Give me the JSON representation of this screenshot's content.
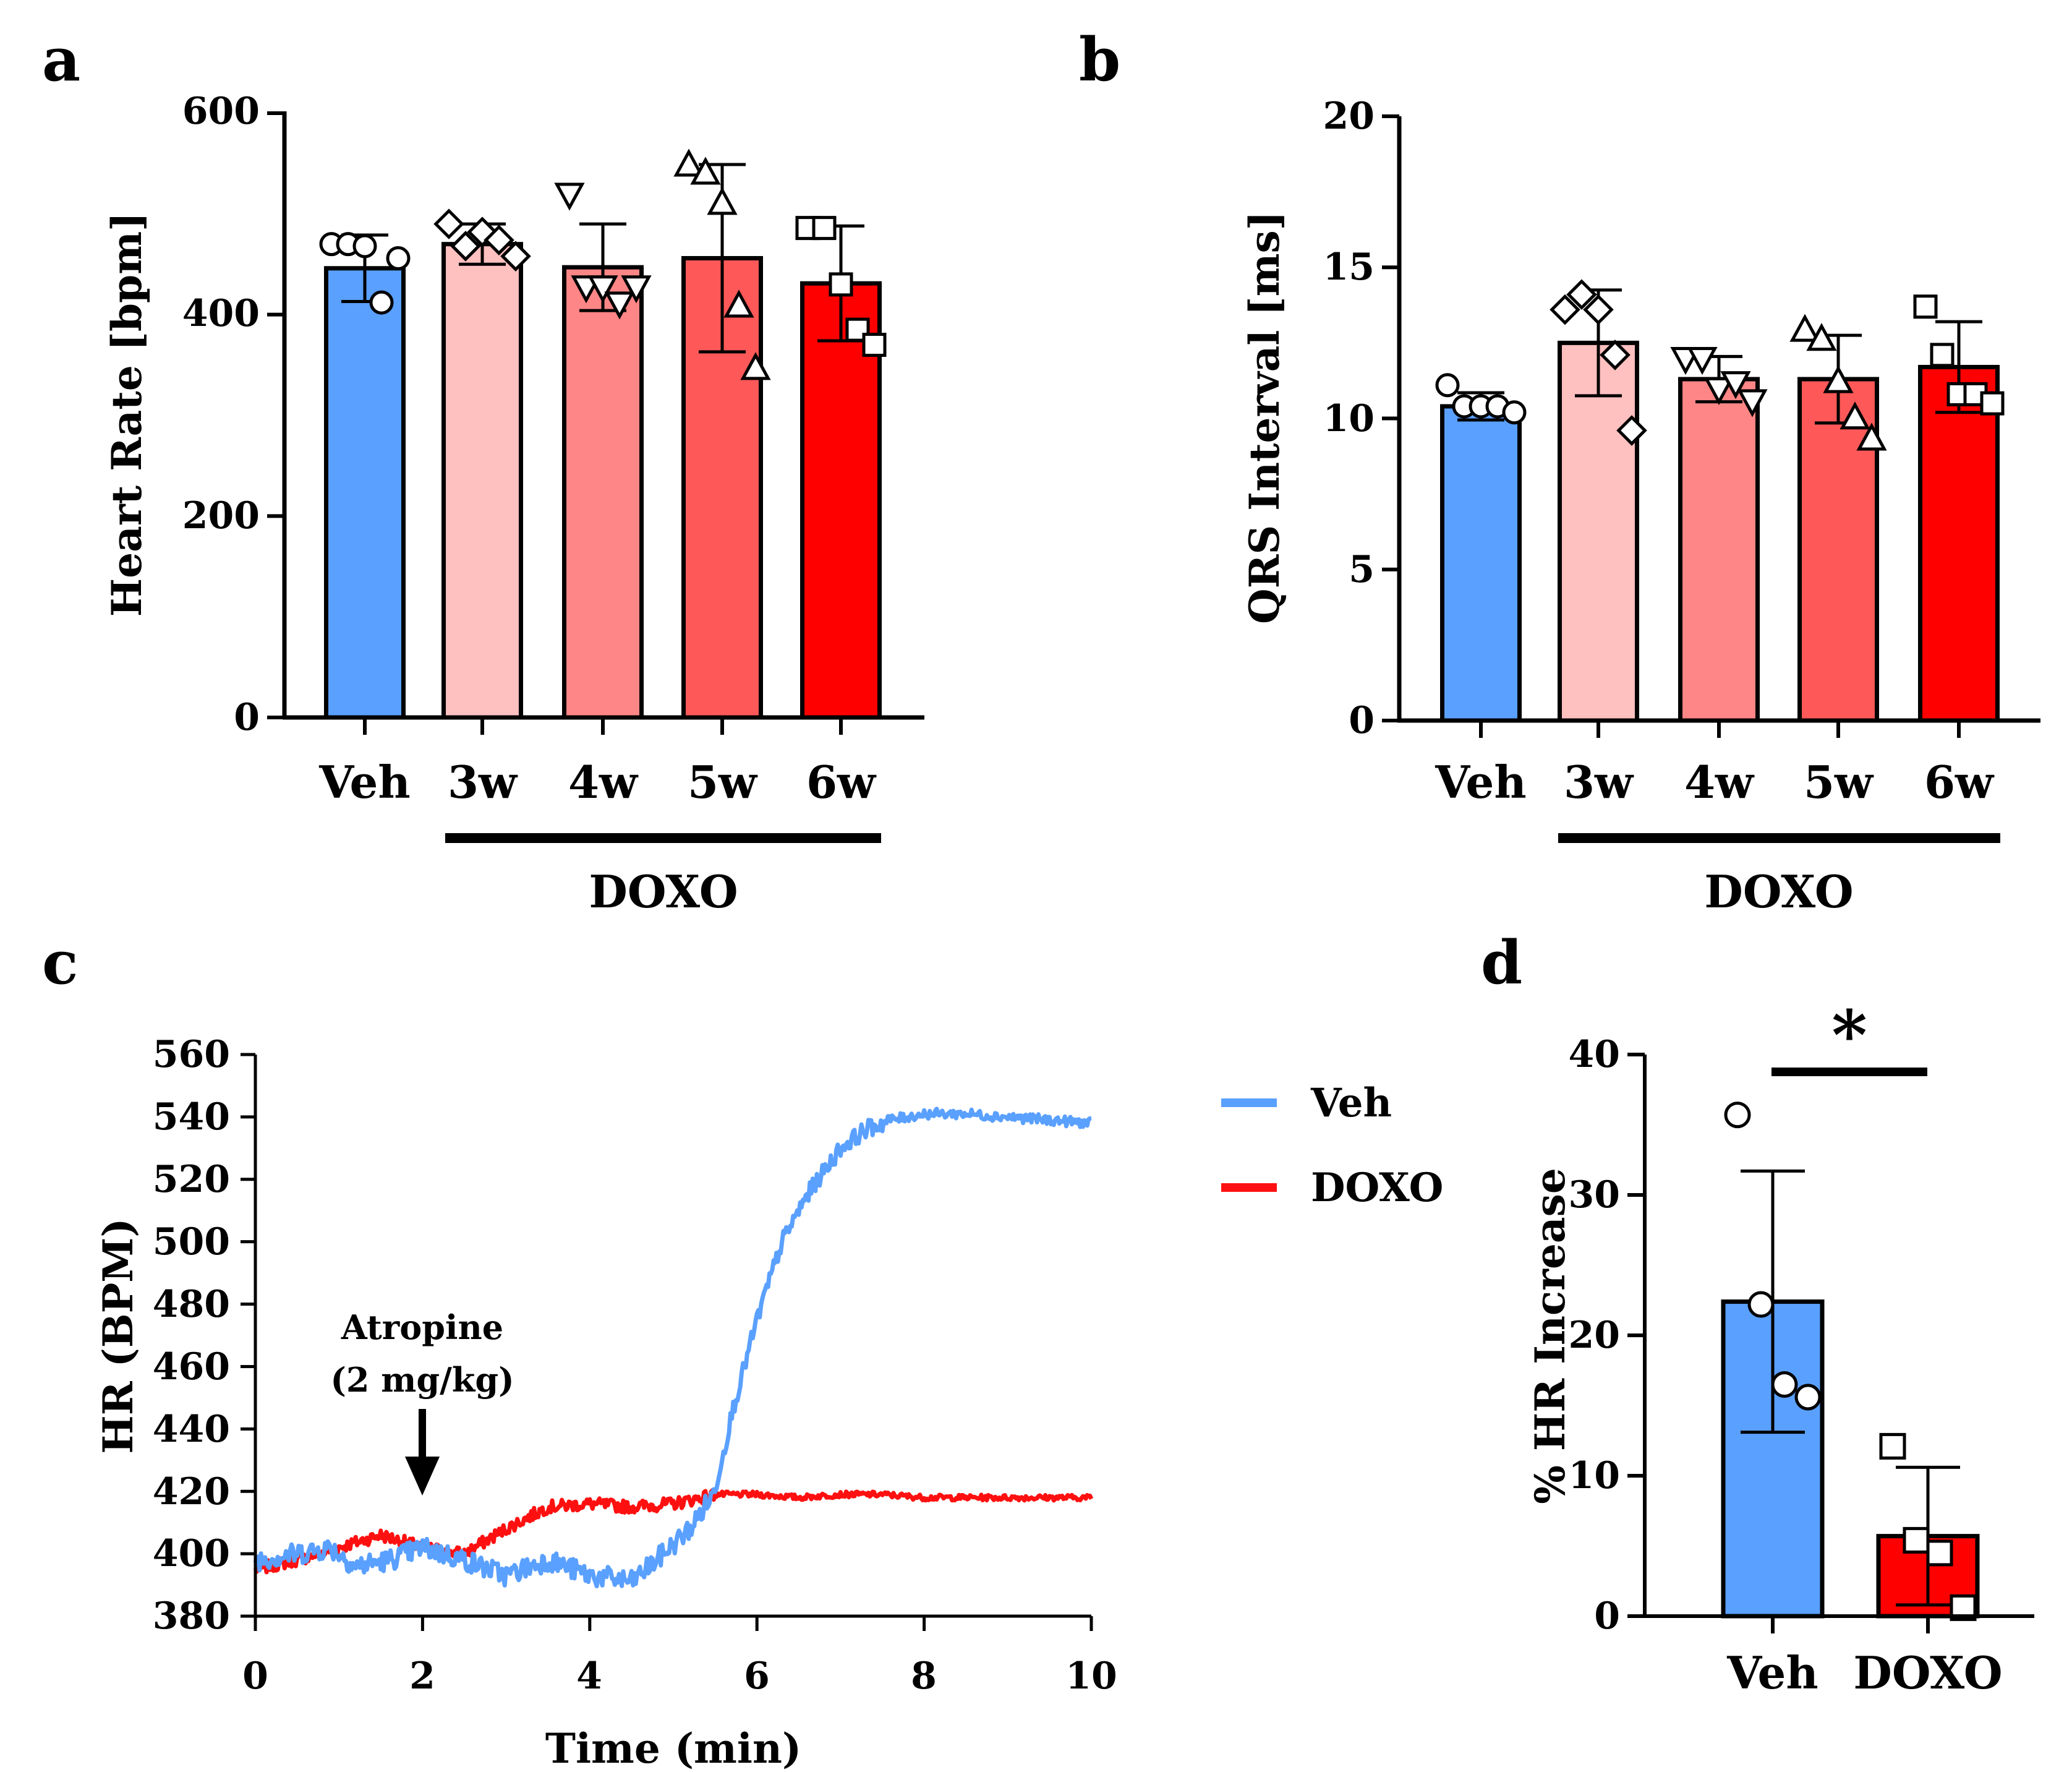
{
  "colors": {
    "veh": "#5aa0ff",
    "w3": "#ffc0c0",
    "w4": "#ff8686",
    "w5": "#ff5858",
    "w6": "#ff0000",
    "doxo_line": "#ff1010",
    "veh_line": "#5aa0ff"
  },
  "chart_data": [
    {
      "panel": "a",
      "type": "bar",
      "categories": [
        "Veh",
        "3w",
        "4w",
        "5w",
        "6w"
      ],
      "values": [
        446,
        470,
        447,
        456,
        431
      ],
      "sd": [
        33,
        20,
        43,
        93,
        57
      ],
      "points": [
        [
          470,
          470,
          468,
          412,
          456
        ],
        [
          490,
          468,
          482,
          474,
          458
        ],
        [
          520,
          428,
          428,
          412,
          428
        ],
        [
          548,
          540,
          510,
          408,
          346
        ],
        [
          486,
          486,
          430,
          385,
          370
        ]
      ],
      "markers": [
        "circle",
        "diamond",
        "triangle-down",
        "triangle-up",
        "square"
      ],
      "ylabel": "Heart  Rate [bpm]",
      "ylim": [
        0,
        600
      ],
      "yticks": [
        0,
        200,
        400,
        600
      ],
      "group_label": "DOXO",
      "group_categories": [
        "3w",
        "4w",
        "5w",
        "6w"
      ]
    },
    {
      "panel": "b",
      "type": "bar",
      "categories": [
        "Veh",
        "3w",
        "4w",
        "5w",
        "6w"
      ],
      "values": [
        10.4,
        12.5,
        11.3,
        11.3,
        11.7
      ],
      "sd": [
        0.45,
        1.75,
        0.75,
        1.45,
        1.5
      ],
      "points": [
        [
          11.1,
          10.4,
          10.4,
          10.4,
          10.2
        ],
        [
          13.6,
          14.1,
          13.6,
          12.1,
          9.6
        ],
        [
          12.0,
          12.0,
          11.0,
          11.2,
          10.6
        ],
        [
          12.9,
          12.6,
          11.2,
          10.0,
          9.3
        ],
        [
          13.7,
          12.1,
          10.8,
          10.8,
          10.5
        ]
      ],
      "markers": [
        "circle",
        "diamond",
        "triangle-down",
        "triangle-up",
        "square"
      ],
      "ylabel": "QRS Interval [ms]",
      "ylim": [
        0,
        20
      ],
      "yticks": [
        0,
        5,
        10,
        15,
        20
      ],
      "group_label": "DOXO",
      "group_categories": [
        "3w",
        "4w",
        "5w",
        "6w"
      ]
    },
    {
      "panel": "c",
      "type": "line",
      "xlabel": "Time (min)",
      "ylabel": "HR (BPM)",
      "xlim": [
        0,
        10
      ],
      "ylim": [
        380,
        560
      ],
      "xticks": [
        0,
        2,
        4,
        6,
        8,
        10
      ],
      "yticks": [
        380,
        400,
        420,
        440,
        460,
        480,
        500,
        520,
        540,
        560
      ],
      "series": [
        {
          "name": "Veh",
          "x": [
            0,
            0.5,
            0.9,
            1.2,
            1.6,
            2.0,
            2.5,
            3.0,
            3.5,
            4.0,
            4.3,
            4.5,
            4.8,
            5.2,
            5.5,
            5.7,
            6.0,
            6.3,
            6.6,
            7.0,
            7.3,
            7.6,
            8.0,
            8.5,
            9.0,
            9.5,
            10.0
          ],
          "y": [
            398,
            400,
            402,
            396,
            398,
            402,
            398,
            393,
            398,
            393,
            392,
            391,
            398,
            408,
            420,
            445,
            475,
            500,
            515,
            530,
            536,
            539,
            541,
            541,
            540,
            539,
            538
          ]
        },
        {
          "name": "DOXO",
          "x": [
            0,
            0.5,
            1.0,
            1.5,
            2.0,
            2.5,
            3.0,
            3.5,
            4.0,
            4.5,
            5.0,
            5.5,
            6.0,
            6.5,
            7.0,
            7.5,
            8.0,
            8.5,
            9.0,
            9.5,
            10.0
          ],
          "y": [
            395,
            398,
            402,
            406,
            402,
            400,
            408,
            415,
            416,
            415,
            416,
            419,
            419,
            418,
            419,
            419,
            418,
            418,
            418,
            418,
            418
          ]
        }
      ],
      "annotation": {
        "line1": "Atropine",
        "line2": "(2 mg/kg)",
        "x": 2
      }
    },
    {
      "panel": "d",
      "type": "bar",
      "categories": [
        "Veh",
        "DOXO"
      ],
      "values": [
        22.4,
        5.7
      ],
      "sd": [
        9.3,
        4.9
      ],
      "points": [
        [
          35.7,
          22.2,
          16.5,
          15.6
        ],
        [
          12.1,
          5.4,
          4.5,
          0.6
        ]
      ],
      "markers": [
        "circle",
        "square"
      ],
      "ylabel": "% HR Increase",
      "ylim": [
        0,
        40
      ],
      "yticks": [
        0,
        10,
        20,
        30,
        40
      ],
      "significance": "*"
    }
  ],
  "panels": {
    "a": "a",
    "b": "b",
    "c": "c",
    "d": "d"
  },
  "panel_a": {
    "ylabel": "Heart  Rate [bpm]",
    "cats": [
      "Veh",
      "3w",
      "4w",
      "5w",
      "6w"
    ],
    "yticks": [
      "0",
      "200",
      "400",
      "600"
    ],
    "group_label": "DOXO"
  },
  "panel_b": {
    "ylabel": "QRS Interval [ms]",
    "cats": [
      "Veh",
      "3w",
      "4w",
      "5w",
      "6w"
    ],
    "yticks": [
      "0",
      "5",
      "10",
      "15",
      "20"
    ],
    "group_label": "DOXO"
  },
  "panel_c": {
    "xlabel": "Time (min)",
    "ylabel": "HR (BPM)",
    "xticks": [
      "0",
      "2",
      "4",
      "6",
      "8",
      "10"
    ],
    "yticks": [
      "380",
      "400",
      "420",
      "440",
      "460",
      "480",
      "500",
      "520",
      "540",
      "560"
    ],
    "annotation_line1": "Atropine",
    "annotation_line2": "(2 mg/kg)",
    "legend": [
      "Veh",
      "DOXO"
    ]
  },
  "panel_d": {
    "ylabel": "% HR Increase",
    "cats": [
      "Veh",
      "DOXO"
    ],
    "yticks": [
      "0",
      "10",
      "20",
      "30",
      "40"
    ],
    "significance": "*"
  }
}
